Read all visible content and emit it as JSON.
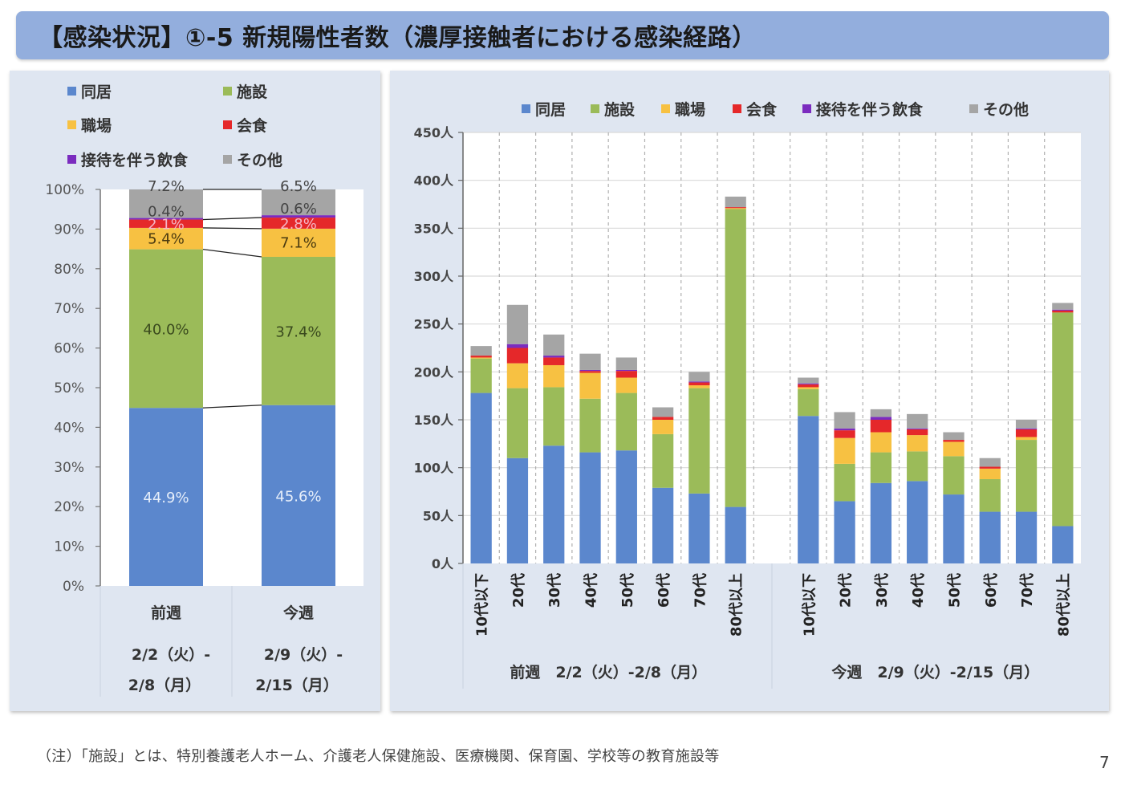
{
  "title": "【感染状況】①-5 新規陽性者数（濃厚接触者における感染経路）",
  "footnote": "（注）「施設」とは、特別養護老人ホーム、介護老人保健施設、医療機関、保育園、学校等の教育施設等",
  "page_number": "7",
  "colors": {
    "同居": "#5b87cd",
    "施設": "#9bbb59",
    "職場": "#f7c142",
    "会食": "#e5282a",
    "接待を伴う飲食": "#7b2cbf",
    "その他": "#a5a5a5"
  },
  "legend": [
    "同居",
    "施設",
    "職場",
    "会食",
    "接待を伴う飲食",
    "その他"
  ],
  "chart_data": [
    {
      "type": "bar",
      "stacked": "percent",
      "title": "",
      "categories": [
        "前週",
        "今週"
      ],
      "category_sublabels": [
        [
          "2/2（火）-",
          "2/8（月）"
        ],
        [
          "2/9（火）-",
          "2/15（月）"
        ]
      ],
      "series": [
        {
          "name": "同居",
          "values": [
            44.9,
            45.6
          ],
          "labels": [
            "44.9%",
            "45.6%"
          ]
        },
        {
          "name": "施設",
          "values": [
            40.0,
            37.4
          ],
          "labels": [
            "40.0%",
            "37.4%"
          ]
        },
        {
          "name": "職場",
          "values": [
            5.4,
            7.1
          ],
          "labels": [
            "5.4%",
            "7.1%"
          ]
        },
        {
          "name": "会食",
          "values": [
            2.1,
            2.8
          ],
          "labels": [
            "2.1%",
            "2.8%"
          ]
        },
        {
          "name": "接待を伴う飲食",
          "values": [
            0.4,
            0.6
          ],
          "labels": [
            "0.4%",
            "0.6%"
          ]
        },
        {
          "name": "その他",
          "values": [
            7.2,
            6.5
          ],
          "labels": [
            "7.2%",
            "6.5%"
          ]
        }
      ],
      "ylim": [
        0,
        100
      ],
      "yticks": [
        "0%",
        "10%",
        "20%",
        "30%",
        "40%",
        "50%",
        "60%",
        "70%",
        "80%",
        "90%",
        "100%"
      ],
      "series_lines": true,
      "legend_position": "top"
    },
    {
      "type": "bar",
      "stacked": "absolute",
      "title": "",
      "groups": [
        {
          "label": "前週　2/2（火）-2/8（月）",
          "categories": [
            "10代以下",
            "20代",
            "30代",
            "40代",
            "50代",
            "60代",
            "70代",
            "80代以上"
          ]
        },
        {
          "label": "今週　2/9（火）-2/15（月）",
          "categories": [
            "10代以下",
            "20代",
            "30代",
            "40代",
            "50代",
            "60代",
            "70代",
            "80代以上"
          ]
        }
      ],
      "series": [
        {
          "name": "同居",
          "values": [
            [
              178,
              110,
              123,
              116,
              118,
              79,
              73,
              59
            ],
            [
              154,
              65,
              84,
              86,
              72,
              54,
              54,
              39
            ]
          ]
        },
        {
          "name": "施設",
          "values": [
            [
              36,
              73,
              61,
              56,
              60,
              56,
              110,
              311
            ],
            [
              28,
              39,
              32,
              31,
              40,
              34,
              75,
              223
            ]
          ]
        },
        {
          "name": "職場",
          "values": [
            [
              1,
              26,
              23,
              27,
              16,
              15,
              3,
              1
            ],
            [
              2,
              27,
              21,
              17,
              15,
              11,
              3,
              0
            ]
          ]
        },
        {
          "name": "会食",
          "values": [
            [
              2,
              16,
              8,
              2,
              7,
              3,
              3,
              1
            ],
            [
              3,
              8,
              13,
              6,
              2,
              2,
              8,
              2
            ]
          ]
        },
        {
          "name": "接待を伴う飲食",
          "values": [
            [
              0,
              4,
              2,
              1,
              1,
              0,
              1,
              0
            ],
            [
              1,
              2,
              3,
              1,
              0,
              0,
              1,
              1
            ]
          ]
        },
        {
          "name": "その他",
          "values": [
            [
              10,
              41,
              22,
              17,
              13,
              10,
              10,
              11
            ],
            [
              6,
              17,
              8,
              15,
              8,
              9,
              9,
              7
            ]
          ]
        }
      ],
      "ylim": [
        0,
        450
      ],
      "yticks": [
        "0人",
        "50人",
        "100人",
        "150人",
        "200人",
        "250人",
        "300人",
        "350人",
        "400人",
        "450人"
      ],
      "ylabel": "",
      "xlabel": "",
      "grid": true,
      "legend_position": "top"
    }
  ]
}
